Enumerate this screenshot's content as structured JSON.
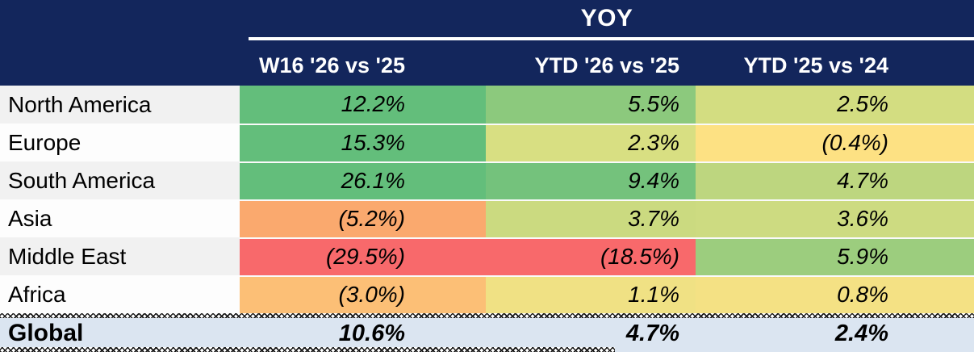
{
  "header": {
    "group_label": "YOY",
    "bg": "#13265c",
    "text_color": "#ffffff",
    "underline_color": "#ffffff",
    "columns": [
      "W16 '26 vs '25",
      "YTD '26 vs '25",
      "YTD '25 vs '24"
    ]
  },
  "table": {
    "rows": [
      {
        "label": "North America",
        "label_bg": "#f1f1f1",
        "values": [
          "12.2%",
          "5.5%",
          "2.5%"
        ],
        "cell_colors": [
          "#63be7b",
          "#8cc97d",
          "#d3dd81"
        ]
      },
      {
        "label": "Europe",
        "label_bg": "#fdfdfd",
        "values": [
          "15.3%",
          "2.3%",
          "(0.4%)"
        ],
        "cell_colors": [
          "#63be7b",
          "#d8df82",
          "#fde183"
        ]
      },
      {
        "label": "South America",
        "label_bg": "#f1f1f1",
        "values": [
          "26.1%",
          "9.4%",
          "4.7%"
        ],
        "cell_colors": [
          "#63be7b",
          "#74c27c",
          "#bdd67f"
        ]
      },
      {
        "label": "Asia",
        "label_bg": "#fdfdfd",
        "values": [
          "(5.2%)",
          "3.7%",
          "3.6%"
        ],
        "cell_colors": [
          "#faa96e",
          "#cbda80",
          "#cddb81"
        ]
      },
      {
        "label": "Middle East",
        "label_bg": "#f1f1f1",
        "values": [
          "(29.5%)",
          "(18.5%)",
          "5.9%"
        ],
        "cell_colors": [
          "#f8696b",
          "#f8696b",
          "#9ccd7e"
        ]
      },
      {
        "label": "Africa",
        "label_bg": "#fdfdfd",
        "values": [
          "(3.0%)",
          "1.1%",
          "0.8%"
        ],
        "cell_colors": [
          "#fcbf76",
          "#f0e184",
          "#f4e184"
        ]
      }
    ],
    "total_row": {
      "label": "Global",
      "bg": "#dbe5f1",
      "values": [
        "10.6%",
        "4.7%",
        "2.4%"
      ]
    }
  },
  "chart_data": {
    "type": "table",
    "title": "YOY",
    "columns": [
      "W16 '26 vs '25",
      "YTD '26 vs '25",
      "YTD '25 vs '24"
    ],
    "rows": [
      "North America",
      "Europe",
      "South America",
      "Asia",
      "Middle East",
      "Africa",
      "Global"
    ],
    "values_pct": [
      [
        12.2,
        5.5,
        2.5
      ],
      [
        15.3,
        2.3,
        -0.4
      ],
      [
        26.1,
        9.4,
        4.7
      ],
      [
        -5.2,
        3.7,
        3.6
      ],
      [
        -29.5,
        -18.5,
        5.9
      ],
      [
        -3.0,
        1.1,
        0.8
      ],
      [
        10.6,
        4.7,
        2.4
      ]
    ],
    "display_values": [
      [
        "12.2%",
        "5.5%",
        "2.5%"
      ],
      [
        "15.3%",
        "2.3%",
        "(0.4%)"
      ],
      [
        "26.1%",
        "9.4%",
        "4.7%"
      ],
      [
        "(5.2%)",
        "3.7%",
        "3.6%"
      ],
      [
        "(29.5%)",
        "(18.5%)",
        "5.9%"
      ],
      [
        "(3.0%)",
        "1.1%",
        "0.8%"
      ],
      [
        "10.6%",
        "4.7%",
        "2.4%"
      ]
    ],
    "notes": "Negative values shown in parentheses. Cells shaded with red-yellow-green color scale; Global total row on light blue."
  }
}
